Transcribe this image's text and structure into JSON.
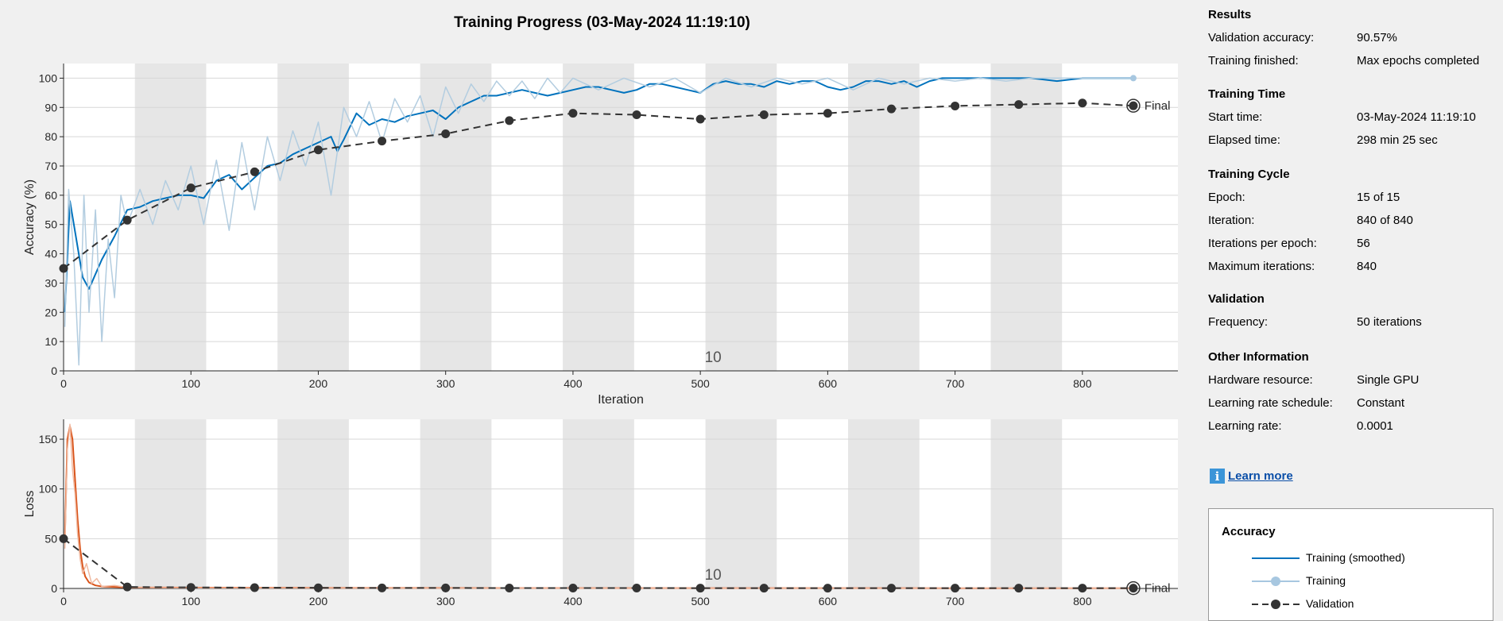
{
  "chart_data": [
    {
      "type": "line",
      "title": "Training Progress (03-May-2024 11:19:10)",
      "xlabel": "Iteration",
      "ylabel": "Accuracy (%)",
      "xlim": [
        0,
        875
      ],
      "ylim": [
        0,
        105
      ],
      "xticks": [
        0,
        100,
        200,
        300,
        400,
        500,
        600,
        700,
        800
      ],
      "yticks": [
        0,
        10,
        20,
        30,
        40,
        50,
        60,
        70,
        80,
        90,
        100
      ],
      "grid": true,
      "epoch_shading": {
        "iterations_per_epoch": 56,
        "epochs": 15
      },
      "epoch_label": "10",
      "final_label": "Final",
      "series": [
        {
          "name": "Training (smoothed)",
          "color": "#0072bd",
          "x": [
            1,
            5,
            10,
            15,
            20,
            30,
            40,
            50,
            60,
            70,
            80,
            90,
            100,
            110,
            120,
            130,
            140,
            150,
            160,
            170,
            180,
            190,
            200,
            210,
            215,
            220,
            230,
            240,
            250,
            260,
            270,
            280,
            290,
            300,
            310,
            320,
            330,
            340,
            350,
            360,
            370,
            380,
            390,
            400,
            410,
            420,
            430,
            440,
            450,
            460,
            470,
            480,
            490,
            500,
            510,
            520,
            530,
            540,
            550,
            560,
            570,
            580,
            590,
            600,
            610,
            620,
            630,
            640,
            650,
            660,
            670,
            680,
            690,
            700,
            720,
            740,
            760,
            780,
            800,
            820,
            840
          ],
          "y": [
            20,
            58,
            45,
            32,
            28,
            38,
            46,
            55,
            56,
            58,
            59,
            60,
            60,
            59,
            65,
            67,
            62,
            66,
            70,
            71,
            74,
            76,
            78,
            80,
            75,
            79,
            88,
            84,
            86,
            85,
            87,
            88,
            89,
            86,
            90,
            92,
            94,
            94,
            95,
            96,
            95,
            94,
            95,
            96,
            97,
            97,
            96,
            95,
            96,
            98,
            98,
            97,
            96,
            95,
            98,
            99,
            98,
            98,
            97,
            99,
            98,
            99,
            99,
            97,
            96,
            97,
            99,
            99,
            98,
            99,
            97,
            99,
            100,
            100,
            100,
            100,
            100,
            99,
            100,
            100,
            100
          ]
        },
        {
          "name": "Training",
          "color": "#b3cde0",
          "x": [
            1,
            4,
            8,
            12,
            16,
            20,
            25,
            30,
            35,
            40,
            45,
            50,
            60,
            70,
            80,
            90,
            100,
            110,
            120,
            130,
            140,
            150,
            160,
            170,
            180,
            190,
            200,
            210,
            220,
            230,
            240,
            250,
            260,
            270,
            280,
            290,
            300,
            310,
            320,
            330,
            340,
            350,
            360,
            370,
            380,
            390,
            400,
            420,
            440,
            460,
            480,
            500,
            520,
            540,
            560,
            580,
            600,
            620,
            640,
            660,
            680,
            700,
            720,
            740,
            760,
            780,
            800,
            820,
            840
          ],
          "y": [
            15,
            62,
            40,
            2,
            60,
            20,
            55,
            10,
            45,
            25,
            60,
            50,
            62,
            50,
            65,
            55,
            70,
            50,
            72,
            48,
            78,
            55,
            80,
            65,
            82,
            70,
            85,
            60,
            90,
            80,
            92,
            78,
            93,
            85,
            94,
            80,
            97,
            88,
            98,
            92,
            99,
            94,
            99,
            93,
            100,
            95,
            100,
            96,
            100,
            97,
            100,
            95,
            100,
            97,
            100,
            98,
            100,
            96,
            100,
            98,
            100,
            99,
            100,
            99,
            100,
            100,
            100,
            100,
            100
          ]
        },
        {
          "name": "Validation",
          "color": "#333333",
          "x": [
            0,
            50,
            100,
            150,
            200,
            250,
            300,
            350,
            400,
            450,
            500,
            550,
            600,
            650,
            700,
            750,
            800,
            840
          ],
          "y": [
            35,
            51.5,
            62.5,
            68,
            75.5,
            78.5,
            81,
            85.5,
            88,
            87.5,
            86,
            87.5,
            88,
            89.5,
            90.5,
            91,
            91.5,
            90.57
          ]
        }
      ]
    },
    {
      "type": "line",
      "xlabel": "Iteration",
      "ylabel": "Loss",
      "xlim": [
        0,
        875
      ],
      "ylim": [
        0,
        170
      ],
      "xticks": [
        0,
        100,
        200,
        300,
        400,
        500,
        600,
        700,
        800
      ],
      "yticks": [
        0,
        50,
        100,
        150
      ],
      "grid": true,
      "epoch_label": "10",
      "final_label": "Final",
      "series": [
        {
          "name": "Training (smoothed)",
          "color": "#d95319",
          "x": [
            1,
            3,
            5,
            7,
            9,
            11,
            13,
            15,
            17,
            20,
            25,
            30,
            40,
            50,
            100,
            200,
            300,
            400,
            500,
            600,
            700,
            800,
            840
          ],
          "y": [
            50,
            150,
            163,
            150,
            110,
            70,
            40,
            22,
            12,
            6,
            3,
            2,
            1.5,
            1,
            0.8,
            0.6,
            0.5,
            0.4,
            0.3,
            0.3,
            0.2,
            0.2,
            0.2
          ]
        },
        {
          "name": "Training",
          "color": "#f0b9a0",
          "x": [
            1,
            3,
            5,
            7,
            9,
            11,
            13,
            15,
            18,
            22,
            26,
            30,
            40,
            50,
            100,
            840
          ],
          "y": [
            40,
            140,
            165,
            120,
            95,
            55,
            30,
            15,
            25,
            5,
            10,
            2,
            3,
            1,
            0.5,
            0.2
          ]
        },
        {
          "name": "Validation",
          "color": "#333333",
          "x": [
            0,
            50,
            100,
            150,
            200,
            250,
            300,
            350,
            400,
            450,
            500,
            550,
            600,
            650,
            700,
            750,
            800,
            840
          ],
          "y": [
            50,
            1.5,
            1,
            0.8,
            0.6,
            0.5,
            0.5,
            0.4,
            0.4,
            0.4,
            0.3,
            0.3,
            0.3,
            0.3,
            0.3,
            0.3,
            0.3,
            0.3
          ]
        }
      ]
    }
  ],
  "panel": {
    "sections": [
      {
        "title": "Results",
        "rows": [
          {
            "label": "Validation accuracy:",
            "value": "90.57%"
          },
          {
            "label": "Training finished:",
            "value": "Max epochs completed"
          }
        ]
      },
      {
        "title": "Training Time",
        "rows": [
          {
            "label": "Start time:",
            "value": "03-May-2024 11:19:10"
          },
          {
            "label": "Elapsed time:",
            "value": "298 min 25 sec"
          }
        ]
      },
      {
        "title": "Training Cycle",
        "rows": [
          {
            "label": "Epoch:",
            "value": "15 of 15"
          },
          {
            "label": "Iteration:",
            "value": "840 of 840"
          },
          {
            "label": "Iterations per epoch:",
            "value": "56"
          },
          {
            "label": "Maximum iterations:",
            "value": "840"
          }
        ]
      },
      {
        "title": "Validation",
        "rows": [
          {
            "label": "Frequency:",
            "value": "50 iterations"
          }
        ]
      },
      {
        "title": "Other Information",
        "rows": [
          {
            "label": "Hardware resource:",
            "value": "Single GPU"
          },
          {
            "label": "Learning rate schedule:",
            "value": "Constant"
          },
          {
            "label": "Learning rate:",
            "value": "0.0001"
          }
        ]
      }
    ],
    "learn_more": "Learn more",
    "info_glyph": "i",
    "info_icon_color": "#3c95d8",
    "legend": {
      "title": "Accuracy",
      "items": [
        "Training (smoothed)",
        "Training",
        "Validation"
      ]
    }
  }
}
